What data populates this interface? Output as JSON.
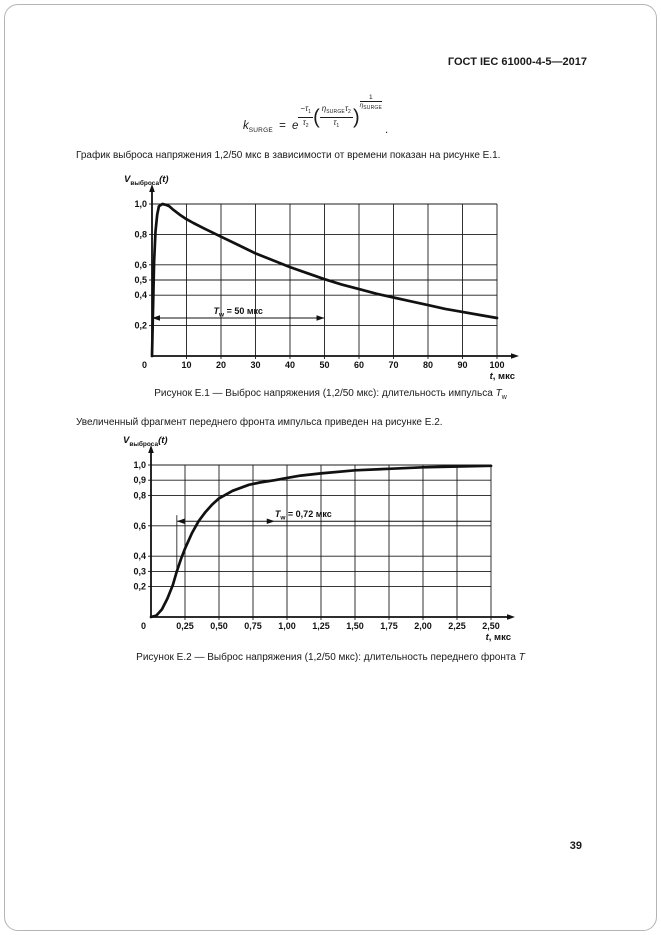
{
  "page": {
    "header": "ГОСТ IEC 61000-4-5—2017",
    "page_number": "39"
  },
  "formula": {
    "k": "k",
    "k_sub": "SURGE",
    "eq": "=",
    "e": "e",
    "exp_num": "−τ",
    "exp_num_sub": "1",
    "exp_den": "τ",
    "exp_den_sub": "2",
    "f2_num1": "η",
    "f2_num1_sub": "SURGE",
    "f2_num2": "τ",
    "f2_num2_sub": "2",
    "f2_den": "τ",
    "f2_den_sub": "1",
    "pow_num": "1",
    "pow_den": "η",
    "pow_den_sub": "SURGE",
    "period": "."
  },
  "paragraphs": {
    "p1": "График выброса напряжения 1,2/50 мкс в зависимости от времени показан на рисунке Е.1.",
    "p2": "Увеличенный фрагмент переднего фронта импульса приведен на рисунке Е.2."
  },
  "captions": {
    "fig1_prefix": "Рисунок Е.1 — Выброс напряжения (1,2/50 мкс): длительность импульса ",
    "fig1_sym": "T",
    "fig1_sub": "w",
    "fig2_prefix": "Рисунок Е.2 — Выброс напряжения (1,2/50 мкс): длительность переднего фронта ",
    "fig2_sym": "T"
  },
  "chart_data": [
    {
      "type": "line",
      "title": "Рисунок Е.1 — Выброс напряжения (1,2/50 мкс): длительность импульса Tw",
      "ylabel_base": "V",
      "ylabel_sub": "выброса",
      "ylabel_tail": "(t)",
      "xlabel_var": "t",
      "xlabel_rest": ", мкс",
      "origin_label": "0",
      "xlim": [
        0,
        100
      ],
      "ylim": [
        0,
        1.0
      ],
      "x_ticks": [
        10,
        20,
        30,
        40,
        50,
        60,
        70,
        80,
        90,
        100
      ],
      "x_tick_labels": [
        "10",
        "20",
        "30",
        "40",
        "50",
        "60",
        "70",
        "80",
        "90",
        "100"
      ],
      "y_gridlines": [
        1.0,
        0.8,
        0.6,
        0.5,
        0.4,
        0.2
      ],
      "y_tick_labels": [
        "1,0",
        "0,8",
        "0,6",
        "0,5",
        "0,4",
        "0,2"
      ],
      "grid": true,
      "points": [
        [
          0,
          0
        ],
        [
          0.3,
          0.3
        ],
        [
          0.6,
          0.62
        ],
        [
          1,
          0.82
        ],
        [
          1.5,
          0.93
        ],
        [
          2,
          0.985
        ],
        [
          3,
          1.0
        ],
        [
          4,
          0.995
        ],
        [
          5,
          0.985
        ],
        [
          6,
          0.965
        ],
        [
          8,
          0.93
        ],
        [
          10,
          0.9
        ],
        [
          12,
          0.875
        ],
        [
          15,
          0.84
        ],
        [
          20,
          0.785
        ],
        [
          25,
          0.73
        ],
        [
          30,
          0.675
        ],
        [
          35,
          0.63
        ],
        [
          40,
          0.585
        ],
        [
          45,
          0.545
        ],
        [
          50,
          0.505
        ],
        [
          55,
          0.47
        ],
        [
          60,
          0.44
        ],
        [
          65,
          0.41
        ],
        [
          70,
          0.385
        ],
        [
          75,
          0.36
        ],
        [
          80,
          0.335
        ],
        [
          85,
          0.31
        ],
        [
          90,
          0.29
        ],
        [
          95,
          0.27
        ],
        [
          100,
          0.25
        ]
      ],
      "annotation": {
        "style": "span",
        "y": 0.25,
        "x_from": 0,
        "x_to": 50,
        "label_base": "T",
        "label_sub": "w",
        "label_rest": " = 50 мкс",
        "label_x": 25
      }
    },
    {
      "type": "line",
      "title": "Рисунок Е.2 — Выброс напряжения (1,2/50 мкс): длительность переднего фронта T",
      "ylabel_base": "V",
      "ylabel_sub": "выброса",
      "ylabel_tail": "(t)",
      "xlabel_var": "t",
      "xlabel_rest": ", мкс",
      "origin_label": "0",
      "xlim": [
        0,
        2.5
      ],
      "ylim": [
        0,
        1.0
      ],
      "x_ticks": [
        0.25,
        0.5,
        0.75,
        1.0,
        1.25,
        1.5,
        1.75,
        2.0,
        2.25,
        2.5
      ],
      "x_tick_labels": [
        "0,25",
        "0,50",
        "0,75",
        "1,00",
        "1,25",
        "1,50",
        "1,75",
        "2,00",
        "2,25",
        "2,50"
      ],
      "y_gridlines": [
        1.0,
        0.9,
        0.8,
        0.6,
        0.4,
        0.3,
        0.2
      ],
      "y_tick_labels": [
        "1,0",
        "0,9",
        "0,8",
        "0,6",
        "0,4",
        "0,3",
        "0,2"
      ],
      "grid": true,
      "points": [
        [
          0,
          0
        ],
        [
          0.04,
          0.01
        ],
        [
          0.08,
          0.05
        ],
        [
          0.12,
          0.12
        ],
        [
          0.16,
          0.21
        ],
        [
          0.19,
          0.3
        ],
        [
          0.22,
          0.38
        ],
        [
          0.25,
          0.45
        ],
        [
          0.3,
          0.55
        ],
        [
          0.35,
          0.63
        ],
        [
          0.4,
          0.69
        ],
        [
          0.45,
          0.74
        ],
        [
          0.5,
          0.78
        ],
        [
          0.6,
          0.83
        ],
        [
          0.72,
          0.87
        ],
        [
          0.8,
          0.885
        ],
        [
          0.91,
          0.9
        ],
        [
          1.0,
          0.915
        ],
        [
          1.1,
          0.93
        ],
        [
          1.25,
          0.945
        ],
        [
          1.5,
          0.965
        ],
        [
          1.75,
          0.975
        ],
        [
          2.0,
          0.985
        ],
        [
          2.25,
          0.99
        ],
        [
          2.5,
          0.995
        ]
      ],
      "annotation": {
        "style": "front",
        "y": 0.63,
        "x_from": 0.19,
        "x_head": 0.91,
        "x_to": 2.5,
        "marker_x": 0.19,
        "marker_y_from": 0.3,
        "marker_y_to": 0.67,
        "label_base": "T",
        "label_sub": "w",
        "label_rest": " = 0,72 мкс",
        "label_x": 1.12
      }
    }
  ]
}
